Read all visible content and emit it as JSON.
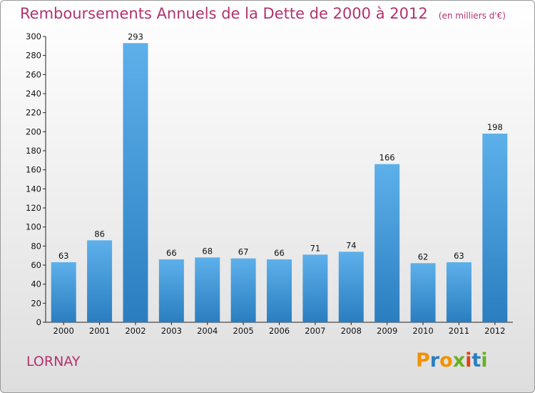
{
  "header": {
    "title": "Remboursements Annuels de la Dette de 2000 à 2012",
    "subtitle": "(en milliers d'€)"
  },
  "place_name": "LORNAY",
  "logo": {
    "text": "Proxiti",
    "letter_colors": [
      "#f39200",
      "#2b7fc1",
      "#f39200",
      "#6ab023",
      "#e23f1c",
      "#2b7fc1",
      "#6ab023"
    ]
  },
  "colors": {
    "title": "#b2326e",
    "bar_top": "#5db0ea",
    "bar_bottom": "#2a7ec0"
  },
  "chart_data": {
    "type": "bar",
    "categories": [
      "2000",
      "2001",
      "2002",
      "2003",
      "2004",
      "2005",
      "2006",
      "2007",
      "2008",
      "2009",
      "2010",
      "2011",
      "2012"
    ],
    "values": [
      63,
      86,
      293,
      66,
      68,
      67,
      66,
      71,
      74,
      166,
      62,
      63,
      198
    ],
    "ylim": [
      0,
      300
    ],
    "yticks": [
      0,
      20,
      40,
      60,
      80,
      100,
      120,
      140,
      160,
      180,
      200,
      220,
      240,
      260,
      280,
      300
    ],
    "grid": false,
    "data_labels": true
  }
}
